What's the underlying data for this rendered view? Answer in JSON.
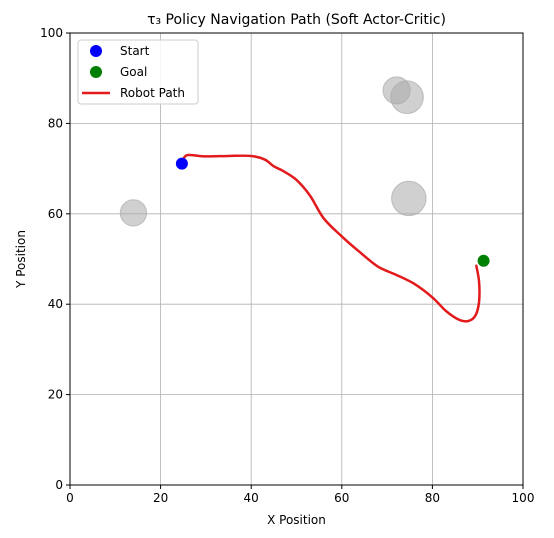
{
  "chart_data": {
    "type": "scatter",
    "title": "τ₃ Policy Navigation Path (Soft Actor-Critic)",
    "xlabel": "X Position",
    "ylabel": "Y Position",
    "xlim": [
      0,
      100
    ],
    "ylim": [
      0,
      100
    ],
    "xticks": [
      "0",
      "20",
      "40",
      "60",
      "80",
      "100"
    ],
    "yticks": [
      "0",
      "20",
      "40",
      "60",
      "80",
      "100"
    ],
    "grid": true,
    "legend_placement": "top-left",
    "legend": [
      {
        "label": "Start",
        "marker": "circle",
        "color": "#0000ff"
      },
      {
        "label": "Goal",
        "marker": "circle",
        "color": "#008000"
      },
      {
        "label": "Robot Path",
        "marker": "line",
        "color": "#e31a1c"
      }
    ],
    "start": {
      "x": 24.7,
      "y": 71.1,
      "color": "#0000ff"
    },
    "goal": {
      "x": 91.3,
      "y": 49.6,
      "color": "#008000"
    },
    "obstacles": [
      {
        "x": 14.0,
        "y": 60.2,
        "r": 2.9
      },
      {
        "x": 72.1,
        "y": 87.3,
        "r": 3.0
      },
      {
        "x": 74.4,
        "y": 85.8,
        "r": 3.6
      },
      {
        "x": 74.8,
        "y": 63.4,
        "r": 3.8
      }
    ],
    "obstacle_color": "#a9a9a9",
    "path": {
      "color": "#e31a1c",
      "x": [
        25,
        26,
        30,
        35,
        40,
        43,
        45,
        47,
        50,
        53,
        56,
        60,
        64,
        68,
        72,
        76,
        80,
        83,
        86,
        88,
        89.5,
        90.3,
        90.3,
        89.7
      ],
      "y": [
        72,
        73,
        72.7,
        72.8,
        72.8,
        72,
        70.5,
        69.5,
        67.5,
        64,
        59,
        55,
        51.5,
        48.3,
        46.5,
        44.5,
        41.5,
        38.5,
        36.5,
        36.3,
        37.5,
        40.5,
        45,
        48.5
      ]
    }
  }
}
